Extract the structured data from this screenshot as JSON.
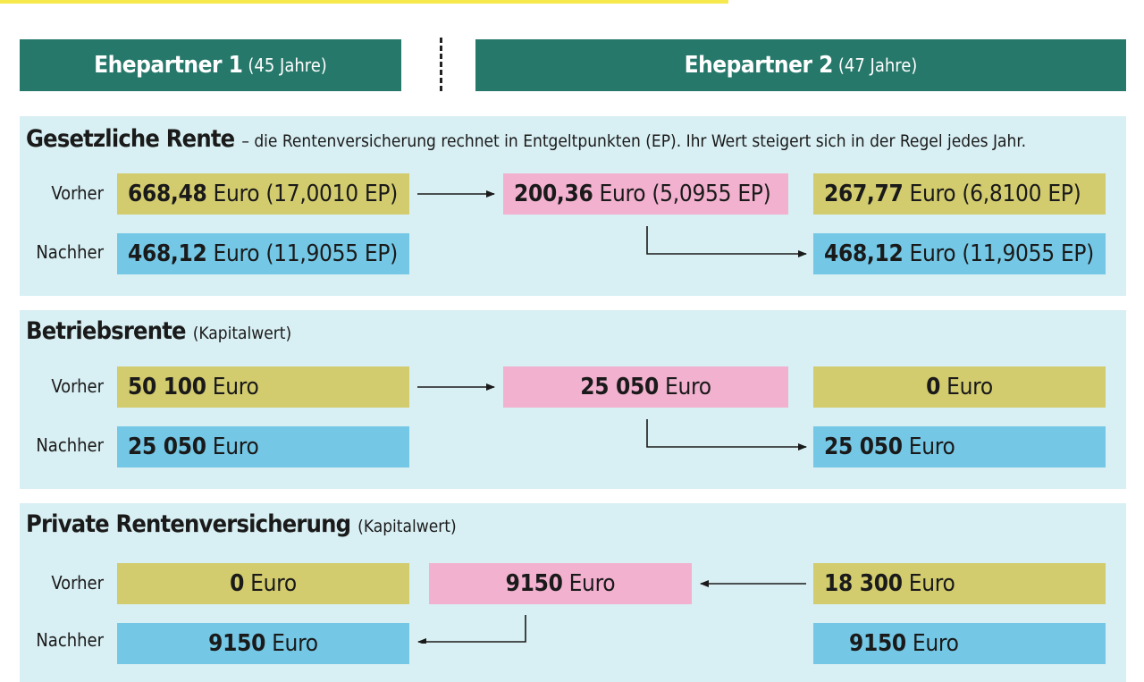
{
  "colors": {
    "header": "#26786a",
    "section_bg": "#d8eff3",
    "olive": "#d3cc6e",
    "pink": "#f2b1cf",
    "blue": "#74c8e6",
    "topbar": "#f6e84d"
  },
  "headers": {
    "p1": {
      "name": "Ehepartner 1",
      "age": "(45 Jahre)"
    },
    "p2": {
      "name": "Ehepartner 2",
      "age": "(47 Jahre)"
    }
  },
  "labels": {
    "vorher": "Vorher",
    "nachher": "Nachher"
  },
  "sections": {
    "gesetzlich": {
      "title": "Gesetzliche Rente",
      "desc": "– die Rentenversicherung rechnet in Entgeltpunkten (EP). Ihr Wert steigert sich in der Regel jedes Jahr.",
      "p1_vorher": {
        "num": "668,48",
        "unit": "Euro (17,0010 EP)"
      },
      "transfer": {
        "num": "200,36",
        "unit": "Euro (5,0955 EP)"
      },
      "p2_vorher": {
        "num": "267,77",
        "unit": "Euro (6,8100 EP)"
      },
      "p1_nachher": {
        "num": "468,12",
        "unit": "Euro (11,9055 EP)"
      },
      "p2_nachher": {
        "num": "468,12",
        "unit": "Euro (11,9055 EP)"
      }
    },
    "betrieb": {
      "title": "Betriebsrente",
      "desc": "(Kapitalwert)",
      "p1_vorher": {
        "num": "50 100",
        "unit": "Euro"
      },
      "transfer": {
        "num": "25 050",
        "unit": "Euro"
      },
      "p2_vorher": {
        "num": "0",
        "unit": "Euro"
      },
      "p1_nachher": {
        "num": "25 050",
        "unit": "Euro"
      },
      "p2_nachher": {
        "num": "25 050",
        "unit": "Euro"
      }
    },
    "privat": {
      "title": "Private Rentenversicherung",
      "desc": "(Kapitalwert)",
      "p1_vorher": {
        "num": "0",
        "unit": "Euro"
      },
      "transfer": {
        "num": "9150",
        "unit": "Euro"
      },
      "p2_vorher": {
        "num": "18 300",
        "unit": "Euro"
      },
      "p1_nachher": {
        "num": "9150",
        "unit": "Euro"
      },
      "p2_nachher": {
        "num": "9150",
        "unit": "Euro"
      }
    }
  }
}
